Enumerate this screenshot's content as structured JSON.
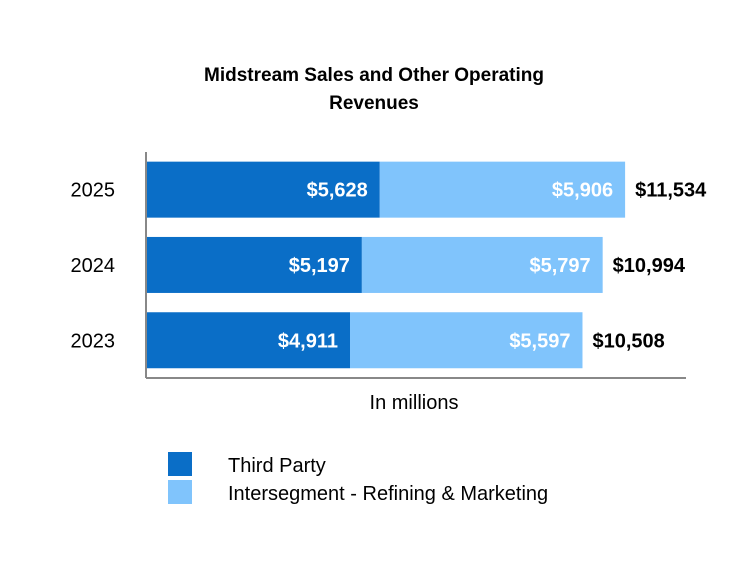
{
  "chart_data": {
    "type": "bar",
    "orientation": "horizontal",
    "stacked": true,
    "title_lines": [
      "Midstream Sales and Other Operating",
      "Revenues"
    ],
    "categories": [
      "2025",
      "2024",
      "2023"
    ],
    "series": [
      {
        "name": "Third Party",
        "values": [
          5628,
          5197,
          4911
        ],
        "labels": [
          "$5,628",
          "$5,197",
          "$4,911"
        ],
        "color": "#0a6ec7"
      },
      {
        "name": "Intersegment - Refining & Marketing",
        "values": [
          5906,
          5797,
          5597
        ],
        "labels": [
          "$5,906",
          "$5,797",
          "$5,597"
        ],
        "color": "#80c4fc"
      }
    ],
    "totals": {
      "values": [
        11534,
        10994,
        10508
      ],
      "labels": [
        "$11,534",
        "$10,994",
        "$10,508"
      ]
    },
    "xlabel": "In millions",
    "ylabel": "",
    "xlim": [
      0,
      13000
    ],
    "grid": false,
    "legend_position": "bottom"
  },
  "colors": {
    "axis": "#888888",
    "text": "#000000",
    "bar_label": "#ffffff"
  }
}
